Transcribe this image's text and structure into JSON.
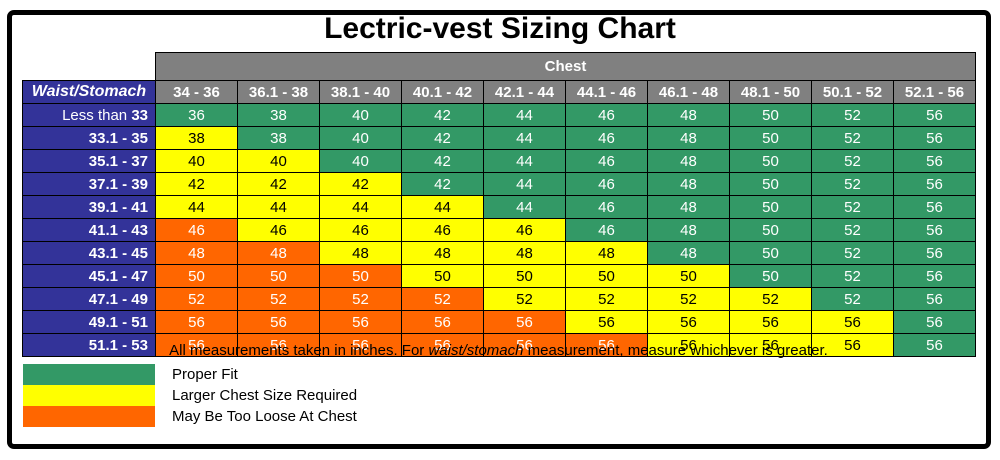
{
  "colors": {
    "green": "#339966",
    "yellow": "#FFFF00",
    "orange": "#FF6600",
    "blue": "#333399",
    "gray": "#808080",
    "border": "#000000"
  },
  "footnote": {
    "part1": "All measurements taken in inches. For ",
    "italic": "waist/stomach",
    "part2": " measurement, measure whichever is greater."
  },
  "legend": [
    {
      "fit": "g",
      "label": "Proper Fit"
    },
    {
      "fit": "y",
      "label": "Larger Chest Size Required"
    },
    {
      "fit": "o",
      "label": "May Be Too Loose At Chest"
    }
  ],
  "chart_data": {
    "type": "table",
    "title": "Lectric-vest Sizing Chart",
    "column_group_label": "Chest",
    "row_group_label": "Waist/Stomach",
    "columns": [
      "34 - 36",
      "36.1 - 38",
      "38.1 - 40",
      "40.1 - 42",
      "42.1 - 44",
      "44.1 - 46",
      "46.1 - 48",
      "48.1 - 50",
      "50.1 - 52",
      "52.1 - 56"
    ],
    "rows": [
      {
        "plain": "Less than ",
        "strong": "33"
      },
      {
        "plain": "",
        "strong": "33.1 - 35"
      },
      {
        "plain": "",
        "strong": "35.1 - 37"
      },
      {
        "plain": "",
        "strong": "37.1 - 39"
      },
      {
        "plain": "",
        "strong": "39.1 - 41"
      },
      {
        "plain": "",
        "strong": "41.1 - 43"
      },
      {
        "plain": "",
        "strong": "43.1 - 45"
      },
      {
        "plain": "",
        "strong": "45.1 - 47"
      },
      {
        "plain": "",
        "strong": "47.1 - 49"
      },
      {
        "plain": "",
        "strong": "49.1 - 51"
      },
      {
        "plain": "",
        "strong": "51.1 - 53"
      }
    ],
    "values": [
      [
        36,
        38,
        40,
        42,
        44,
        46,
        48,
        50,
        52,
        56
      ],
      [
        38,
        38,
        40,
        42,
        44,
        46,
        48,
        50,
        52,
        56
      ],
      [
        40,
        40,
        40,
        42,
        44,
        46,
        48,
        50,
        52,
        56
      ],
      [
        42,
        42,
        42,
        42,
        44,
        46,
        48,
        50,
        52,
        56
      ],
      [
        44,
        44,
        44,
        44,
        44,
        46,
        48,
        50,
        52,
        56
      ],
      [
        46,
        46,
        46,
        46,
        46,
        46,
        48,
        50,
        52,
        56
      ],
      [
        48,
        48,
        48,
        48,
        48,
        48,
        48,
        50,
        52,
        56
      ],
      [
        50,
        50,
        50,
        50,
        50,
        50,
        50,
        50,
        52,
        56
      ],
      [
        52,
        52,
        52,
        52,
        52,
        52,
        52,
        52,
        52,
        56
      ],
      [
        56,
        56,
        56,
        56,
        56,
        56,
        56,
        56,
        56,
        56
      ],
      [
        56,
        56,
        56,
        56,
        56,
        56,
        56,
        56,
        56,
        56
      ]
    ],
    "fit": [
      [
        "g",
        "g",
        "g",
        "g",
        "g",
        "g",
        "g",
        "g",
        "g",
        "g"
      ],
      [
        "y",
        "g",
        "g",
        "g",
        "g",
        "g",
        "g",
        "g",
        "g",
        "g"
      ],
      [
        "y",
        "y",
        "g",
        "g",
        "g",
        "g",
        "g",
        "g",
        "g",
        "g"
      ],
      [
        "y",
        "y",
        "y",
        "g",
        "g",
        "g",
        "g",
        "g",
        "g",
        "g"
      ],
      [
        "y",
        "y",
        "y",
        "y",
        "g",
        "g",
        "g",
        "g",
        "g",
        "g"
      ],
      [
        "o",
        "y",
        "y",
        "y",
        "y",
        "g",
        "g",
        "g",
        "g",
        "g"
      ],
      [
        "o",
        "o",
        "y",
        "y",
        "y",
        "y",
        "g",
        "g",
        "g",
        "g"
      ],
      [
        "o",
        "o",
        "o",
        "y",
        "y",
        "y",
        "y",
        "g",
        "g",
        "g"
      ],
      [
        "o",
        "o",
        "o",
        "o",
        "y",
        "y",
        "y",
        "y",
        "g",
        "g"
      ],
      [
        "o",
        "o",
        "o",
        "o",
        "o",
        "y",
        "y",
        "y",
        "y",
        "g"
      ],
      [
        "o",
        "o",
        "o",
        "o",
        "o",
        "o",
        "y",
        "y",
        "y",
        "g"
      ]
    ],
    "fit_meaning": {
      "g": "Proper Fit",
      "y": "Larger Chest Size Required",
      "o": "May Be Too Loose At Chest"
    }
  }
}
